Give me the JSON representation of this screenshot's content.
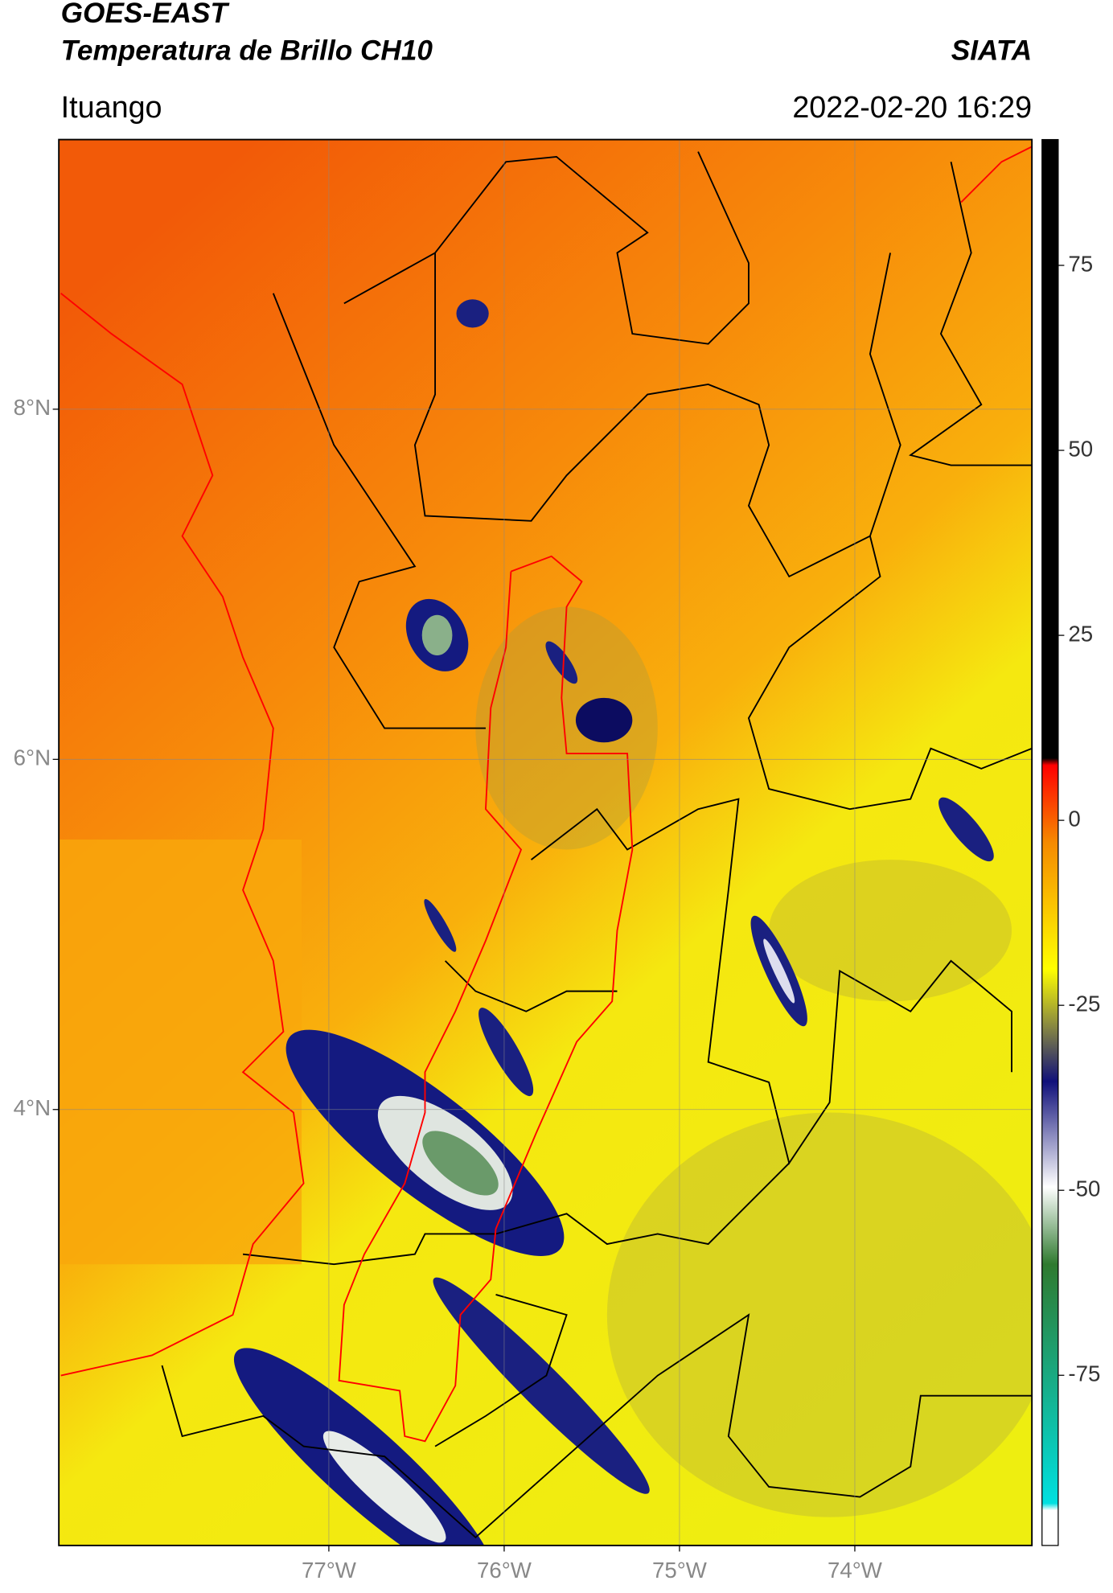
{
  "chart_data": {
    "type": "map",
    "title": "GOES-EAST",
    "subtitle": "Temperatura de Brillo CH10",
    "source": "SIATA",
    "region": "Ituango",
    "datetime": "2022-02-20 16:29",
    "xlim": [
      -78.54,
      -72.99
    ],
    "ylim": [
      1.51,
      9.54
    ],
    "xticks": [
      {
        "value": -77,
        "label": "77°W"
      },
      {
        "value": -76,
        "label": "76°W"
      },
      {
        "value": -75,
        "label": "75°W"
      },
      {
        "value": -74,
        "label": "74°W"
      }
    ],
    "yticks": [
      {
        "value": 8,
        "label": "8°N"
      },
      {
        "value": 6,
        "label": "6°N"
      },
      {
        "value": 4,
        "label": "4°N"
      }
    ],
    "grid": true,
    "colorbar": {
      "lim": [
        -98,
        92
      ],
      "ticks": [
        75,
        50,
        25,
        0,
        -25,
        -50,
        -75
      ]
    }
  }
}
